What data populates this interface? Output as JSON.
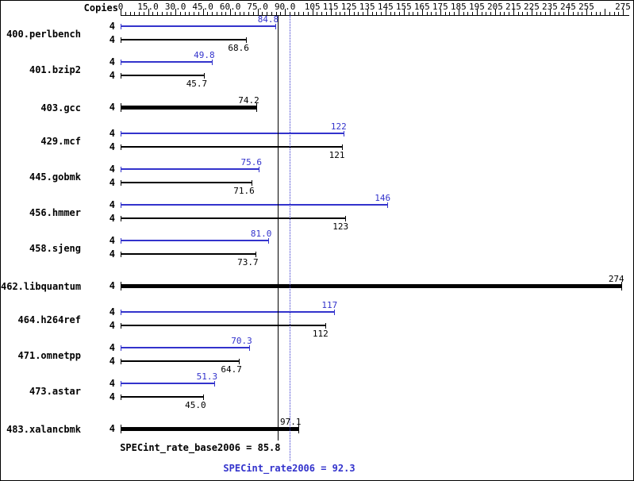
{
  "chart_data": {
    "type": "bar",
    "orientation": "horizontal",
    "copies_header": "Copies",
    "axis": {
      "min": 0,
      "max": 275,
      "minor_tick_step": 2.5,
      "ticks": [
        {
          "v": 0,
          "label": "0"
        },
        {
          "v": 15,
          "label": "15.0"
        },
        {
          "v": 30,
          "label": "30.0"
        },
        {
          "v": 45,
          "label": "45.0"
        },
        {
          "v": 60,
          "label": "60.0"
        },
        {
          "v": 75,
          "label": "75.0"
        },
        {
          "v": 90,
          "label": "90.0"
        },
        {
          "v": 105,
          "label": "105"
        },
        {
          "v": 115,
          "label": "115"
        },
        {
          "v": 125,
          "label": "125"
        },
        {
          "v": 135,
          "label": "135"
        },
        {
          "v": 145,
          "label": "145"
        },
        {
          "v": 155,
          "label": "155"
        },
        {
          "v": 165,
          "label": "165"
        },
        {
          "v": 175,
          "label": "175"
        },
        {
          "v": 185,
          "label": "185"
        },
        {
          "v": 195,
          "label": "195"
        },
        {
          "v": 205,
          "label": "205"
        },
        {
          "v": 215,
          "label": "215"
        },
        {
          "v": 225,
          "label": "225"
        },
        {
          "v": 235,
          "label": "235"
        },
        {
          "v": 245,
          "label": "245"
        },
        {
          "v": 255,
          "label": "255"
        },
        {
          "v": 265,
          "label": ""
        },
        {
          "v": 275,
          "label": "275"
        }
      ]
    },
    "benchmarks": [
      {
        "name": "400.perlbench",
        "copies": 4,
        "peak": 84.8,
        "peak_label": "84.8",
        "base": 68.6,
        "base_label": "68.6",
        "base_only": false
      },
      {
        "name": "401.bzip2",
        "copies": 4,
        "peak": 49.8,
        "peak_label": "49.8",
        "base": 45.7,
        "base_label": "45.7",
        "base_only": false
      },
      {
        "name": "403.gcc",
        "copies": 4,
        "base": 74.2,
        "base_label": "74.2",
        "base_only": true
      },
      {
        "name": "429.mcf",
        "copies": 4,
        "peak": 122,
        "peak_label": "122",
        "base": 121,
        "base_label": "121",
        "base_only": false
      },
      {
        "name": "445.gobmk",
        "copies": 4,
        "peak": 75.6,
        "peak_label": "75.6",
        "base": 71.6,
        "base_label": "71.6",
        "base_only": false
      },
      {
        "name": "456.hmmer",
        "copies": 4,
        "peak": 146,
        "peak_label": "146",
        "base": 123,
        "base_label": "123",
        "base_only": false
      },
      {
        "name": "458.sjeng",
        "copies": 4,
        "peak": 81.0,
        "peak_label": "81.0",
        "base": 73.7,
        "base_label": "73.7",
        "base_only": false
      },
      {
        "name": "462.libquantum",
        "copies": 4,
        "base": 274,
        "base_label": "274",
        "base_only": true
      },
      {
        "name": "464.h264ref",
        "copies": 4,
        "peak": 117,
        "peak_label": "117",
        "base": 112,
        "base_label": "112",
        "base_only": false
      },
      {
        "name": "471.omnetpp",
        "copies": 4,
        "peak": 70.3,
        "peak_label": "70.3",
        "base": 64.7,
        "base_label": "64.7",
        "base_only": false
      },
      {
        "name": "473.astar",
        "copies": 4,
        "peak": 51.3,
        "peak_label": "51.3",
        "base": 45.0,
        "base_label": "45.0",
        "base_only": false
      },
      {
        "name": "483.xalancbmk",
        "copies": 4,
        "base": 97.1,
        "base_label": "97.1",
        "base_only": true
      }
    ],
    "means": {
      "base": {
        "value": 85.8,
        "label": "SPECint_rate_base2006 = 85.8"
      },
      "peak": {
        "value": 92.3,
        "label": "SPECint_rate2006 = 92.3"
      }
    },
    "colors": {
      "peak": "#3333cc",
      "base": "#000000"
    }
  }
}
